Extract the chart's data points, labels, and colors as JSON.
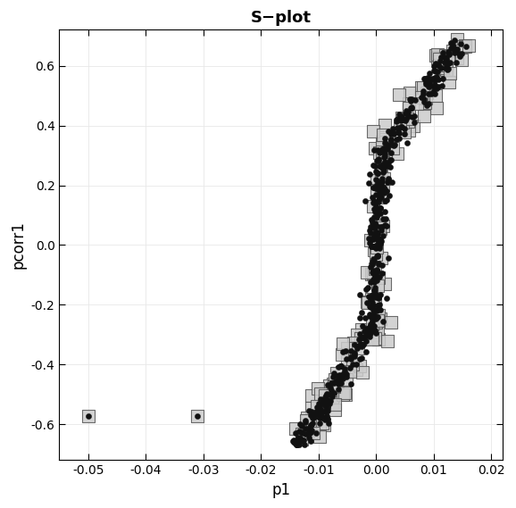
{
  "title": "S−plot",
  "xlabel": "p1",
  "ylabel": "pcorr1",
  "xlim": [
    -0.055,
    0.022
  ],
  "ylim": [
    -0.72,
    0.72
  ],
  "xticks": [
    -0.05,
    -0.04,
    -0.03,
    -0.02,
    -0.01,
    0.0,
    0.01,
    0.02
  ],
  "yticks": [
    -0.6,
    -0.4,
    -0.2,
    0.0,
    0.2,
    0.4,
    0.6
  ],
  "xtick_labels": [
    "-0.05",
    "-0.04",
    "-0.03",
    "-0.02",
    "-0.01",
    "0.00",
    "0.01",
    "0.02"
  ],
  "ytick_labels": [
    "-0.6",
    "-0.4",
    "-0.2",
    "0.0",
    "0.2",
    "0.4",
    "0.6"
  ],
  "bg_color": "#ffffff",
  "square_facecolor": "#cccccc",
  "square_edgecolor": "#555555",
  "circle_color": "#111111",
  "outlier_p1": [
    -0.05,
    -0.031
  ],
  "outlier_pcorr1": [
    -0.573,
    -0.573
  ]
}
